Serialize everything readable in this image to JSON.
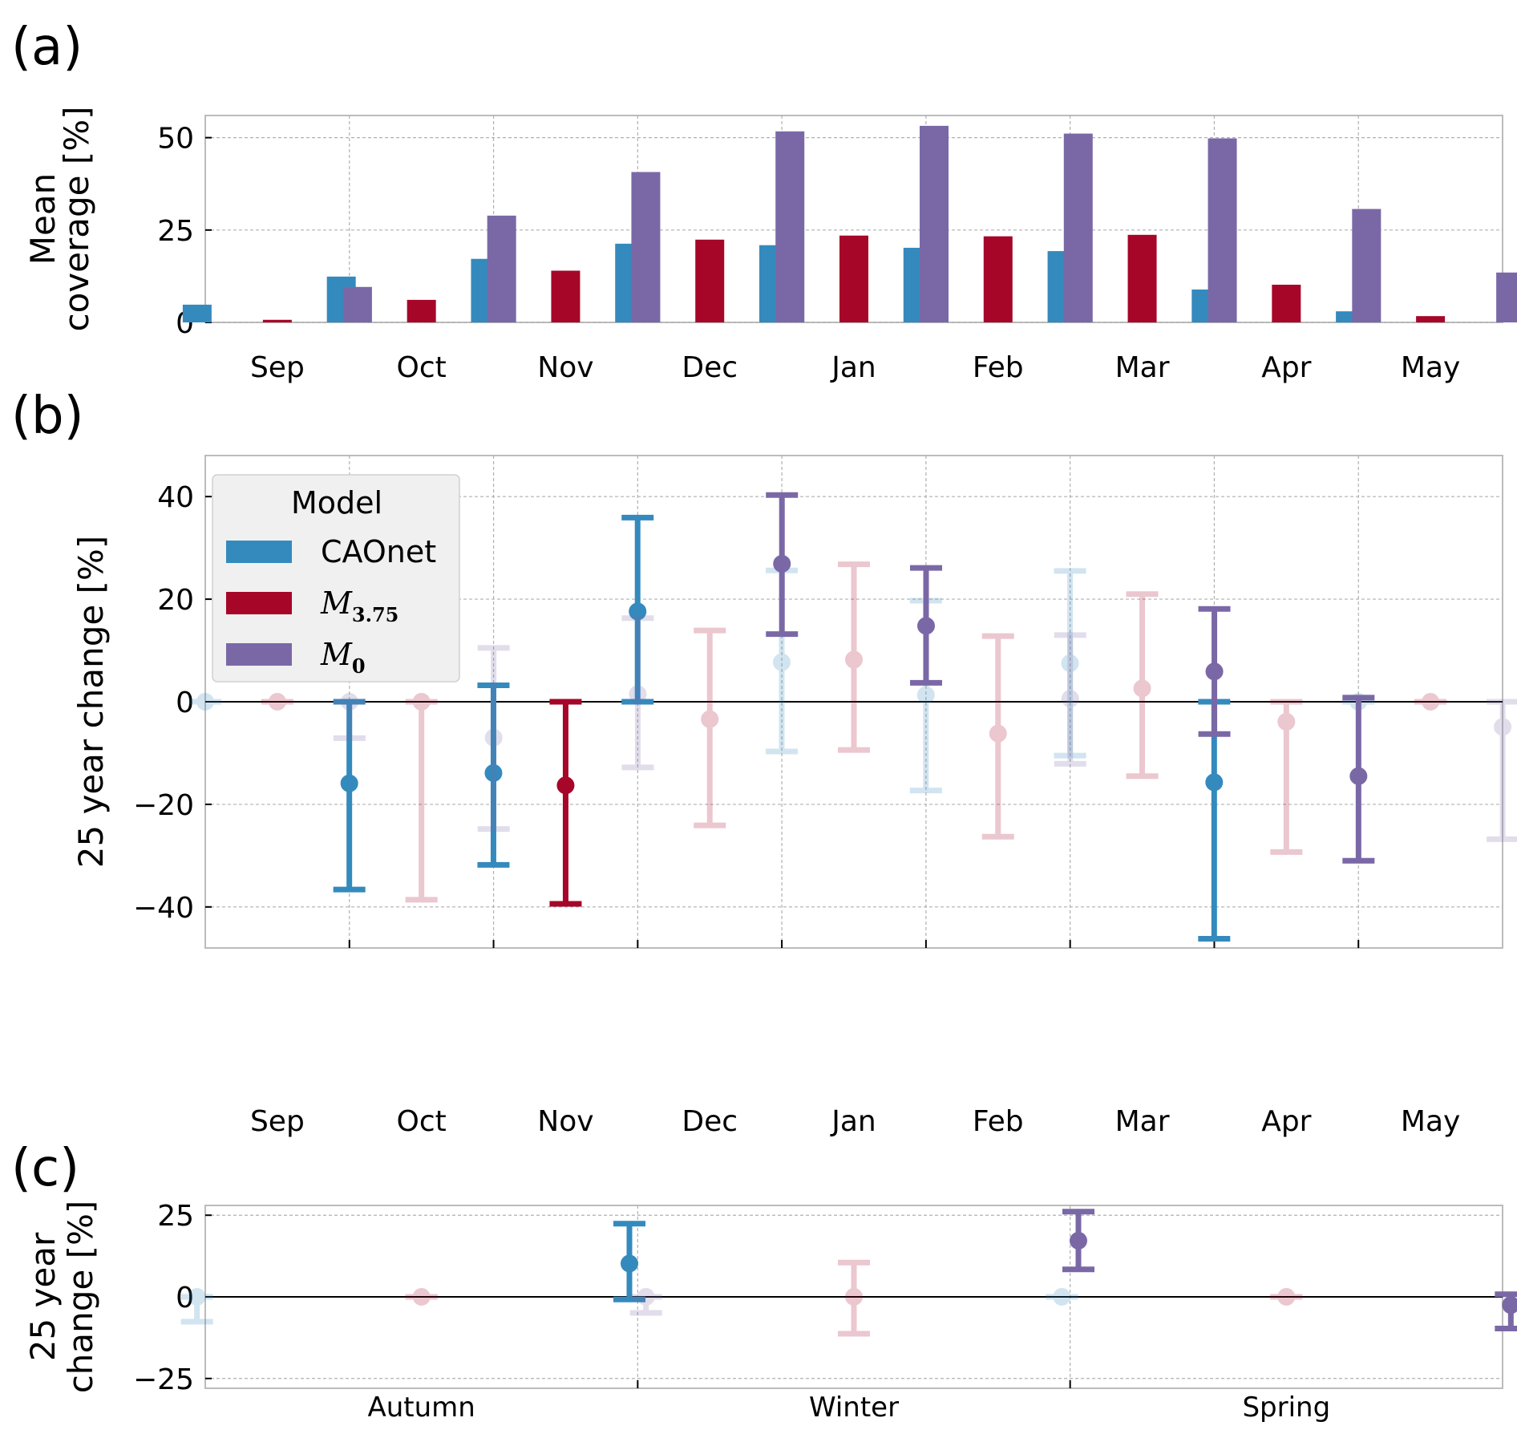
{
  "panel_labels": [
    "(a)",
    "(b)",
    "(c)"
  ],
  "legend": {
    "title": "Model",
    "entries": [
      {
        "name": "CAOnet",
        "label": "CAOnet",
        "color": "#348ABD"
      },
      {
        "name": "M3.75",
        "label": "M",
        "sub": "3.75",
        "color": "#A60628"
      },
      {
        "name": "M0",
        "label": "M",
        "sub": "0",
        "color": "#7A68A6"
      }
    ]
  },
  "chart_data": [
    {
      "id": "a",
      "type": "bar",
      "title": "",
      "xlabel": "",
      "ylabel": "Mean coverage [%]",
      "ylabel_lines": [
        "Mean",
        "coverage [%]"
      ],
      "ylim": [
        0,
        56
      ],
      "yticks": [
        0,
        25,
        50
      ],
      "grid": true,
      "categories": [
        "Sep",
        "Oct",
        "Nov",
        "Dec",
        "Jan",
        "Feb",
        "Mar",
        "Apr",
        "May"
      ],
      "series": [
        {
          "name": "CAOnet",
          "color": "#348ABD",
          "values": [
            4.8,
            12.4,
            17.2,
            21.3,
            20.9,
            20.2,
            19.3,
            8.9,
            3.0
          ]
        },
        {
          "name": "M3.75",
          "color": "#A60628",
          "values": [
            0.7,
            6.1,
            14.0,
            22.4,
            23.5,
            23.3,
            23.7,
            10.2,
            1.7
          ]
        },
        {
          "name": "M0",
          "color": "#7A68A6",
          "values": [
            9.6,
            28.9,
            40.7,
            51.7,
            53.2,
            51.1,
            49.8,
            30.7,
            13.5
          ]
        }
      ]
    },
    {
      "id": "b",
      "type": "scatter",
      "subtype": "errorbar",
      "title": "",
      "xlabel": "",
      "ylabel": "25 year change [%]",
      "ylim": [
        -48,
        48
      ],
      "yticks": [
        -40,
        -20,
        0,
        20,
        40
      ],
      "ytick_labels": [
        "−40",
        "−20",
        "0",
        "20",
        "40"
      ],
      "grid": true,
      "legend_position": "top-left",
      "categories": [
        "Sep",
        "Oct",
        "Nov",
        "Dec",
        "Jan",
        "Feb",
        "Mar",
        "Apr",
        "May"
      ],
      "series": [
        {
          "name": "CAOnet",
          "color": "#348ABD",
          "values": [
            0,
            -15.9,
            -13.9,
            17.6,
            7.7,
            1.3,
            7.5,
            -15.7,
            0
          ],
          "low": [
            0,
            -36.6,
            -31.8,
            0,
            -9.7,
            -17.3,
            -10.5,
            -46.2,
            0
          ],
          "high": [
            0,
            0,
            3.2,
            35.9,
            25.6,
            19.7,
            25.5,
            0,
            0
          ],
          "significant": [
            false,
            true,
            true,
            true,
            false,
            false,
            false,
            true,
            false
          ]
        },
        {
          "name": "M3.75",
          "color": "#A60628",
          "values": [
            0,
            0,
            -16.3,
            -3.4,
            8.2,
            -6.2,
            2.6,
            -3.9,
            0
          ],
          "low": [
            0,
            -38.6,
            -39.4,
            -24.1,
            -9.4,
            -26.3,
            -14.5,
            -29.3,
            0
          ],
          "high": [
            0,
            0,
            0,
            13.9,
            26.8,
            12.8,
            21.0,
            0,
            0
          ],
          "significant": [
            false,
            false,
            true,
            false,
            false,
            false,
            false,
            false,
            false
          ]
        },
        {
          "name": "M0",
          "color": "#7A68A6",
          "values": [
            0,
            -7.0,
            1.5,
            26.9,
            14.8,
            0.6,
            5.9,
            -14.5,
            -4.9
          ],
          "low": [
            -7.1,
            -24.8,
            -12.8,
            13.2,
            3.7,
            -12.1,
            -6.3,
            -31.0,
            -26.8
          ],
          "high": [
            0,
            10.5,
            16.3,
            40.3,
            26.1,
            13.0,
            18.1,
            0.8,
            0
          ],
          "significant": [
            false,
            false,
            false,
            true,
            true,
            false,
            true,
            true,
            false
          ]
        }
      ]
    },
    {
      "id": "c",
      "type": "scatter",
      "subtype": "errorbar",
      "title": "",
      "xlabel": "",
      "ylabel": "25 year change [%]",
      "ylabel_lines": [
        "25 year",
        "change [%]"
      ],
      "ylim": [
        -28,
        28
      ],
      "yticks": [
        -25,
        0,
        25
      ],
      "ytick_labels": [
        "−25",
        "0",
        "25"
      ],
      "grid": true,
      "categories": [
        "Autumn",
        "Winter",
        "Spring"
      ],
      "series": [
        {
          "name": "CAOnet",
          "color": "#348ABD",
          "values": [
            0,
            10.2,
            0
          ],
          "low": [
            -7.6,
            -0.8,
            0
          ],
          "high": [
            0,
            22.4,
            0
          ],
          "significant": [
            false,
            true,
            false
          ]
        },
        {
          "name": "M3.75",
          "color": "#A60628",
          "values": [
            0,
            0,
            0
          ],
          "low": [
            0,
            -11.3,
            0
          ],
          "high": [
            0,
            10.5,
            0
          ],
          "significant": [
            false,
            false,
            false
          ]
        },
        {
          "name": "M0",
          "color": "#7A68A6",
          "values": [
            0,
            17.2,
            -2.5
          ],
          "low": [
            -4.9,
            8.4,
            -9.7
          ],
          "high": [
            0,
            26.1,
            0.8
          ],
          "significant": [
            false,
            true,
            true
          ]
        }
      ]
    }
  ]
}
